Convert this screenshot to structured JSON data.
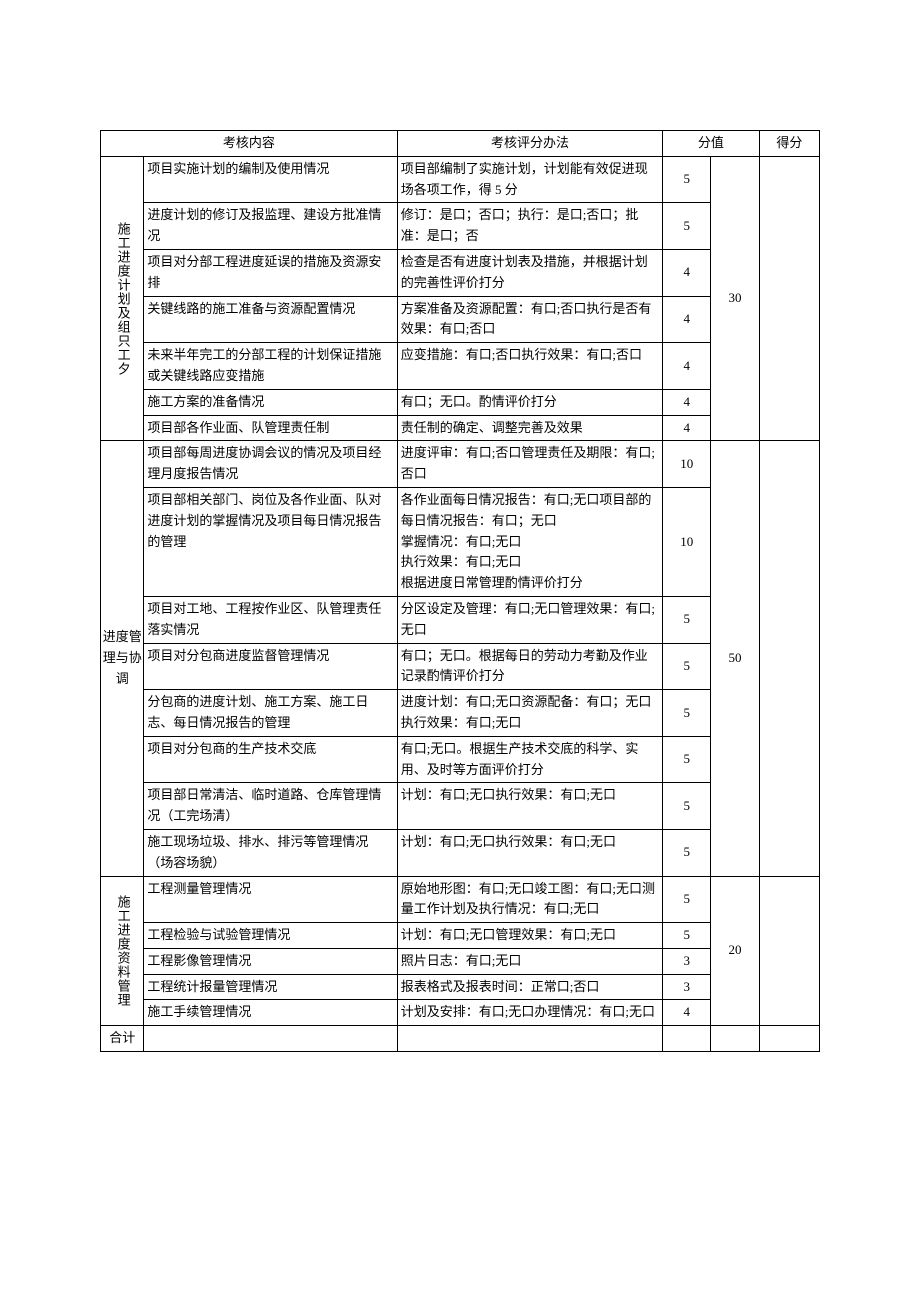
{
  "headers": {
    "content": "考核内容",
    "method": "考核评分办法",
    "score": "分值",
    "got": "得分"
  },
  "sections": [
    {
      "category": "施工进度计划及组只工夕",
      "group_score": "30",
      "rows": [
        {
          "item": "项目实施计划的编制及使用情况",
          "method": "项目部编制了实施计划，计划能有效促进现场各项工作，得 5 分",
          "score": "5"
        },
        {
          "item": "进度计划的修订及报监理、建设方批准情况",
          "method": "修订：是口；否口；执行：是口;否口；批准：是口；否",
          "score": "5"
        },
        {
          "item": "项目对分部工程进度延误的措施及资源安排",
          "method": "检查是否有进度计划表及措施，并根据计划的完善性评价打分",
          "score": "4"
        },
        {
          "item": "关键线路的施工准备与资源配置情况",
          "method": "方案准备及资源配置：有口;否口执行是否有效果：有口;否口",
          "score": "4"
        },
        {
          "item": "未来半年完工的分部工程的计划保证措施或关键线路应变措施",
          "method": "应变措施：有口;否口执行效果：有口;否口",
          "score": "4"
        },
        {
          "item": "施工方案的准备情况",
          "method": "有口；无口。酌情评价打分",
          "score": "4"
        },
        {
          "item": "项目部各作业面、队管理责任制",
          "method": "责任制的确定、调整完善及效果",
          "score": "4"
        }
      ]
    },
    {
      "category": "进度管理与协调",
      "category_plain": true,
      "group_score": "50",
      "rows": [
        {
          "item": "项目部每周进度协调会议的情况及项目经理月度报告情况",
          "method": "进度评审：有口;否口管理责任及期限：有口;否口",
          "score": "10"
        },
        {
          "item": "项目部相关部门、岗位及各作业面、队对进度计划的掌握情况及项目每日情况报告的管理",
          "method": "各作业面每日情况报告：有口;无口项目部的每日情况报告：有口；无口\n掌握情况：有口;无口\n执行效果：有口;无口\n根据进度日常管理酌情评价打分",
          "score": "10"
        },
        {
          "item": "项目对工地、工程按作业区、队管理责任落实情况",
          "method": "分区设定及管理：有口;无口管理效果：有口;无口",
          "score": "5"
        },
        {
          "item": "项目对分包商进度监督管理情况",
          "method": "有口；无口。根据每日的劳动力考勤及作业记录酌情评价打分",
          "score": "5"
        },
        {
          "item": "分包商的进度计划、施工方案、施工日志、每日情况报告的管理",
          "method": "进度计划：有口;无口资源配备：有口；无口执行效果：有口;无口",
          "score": "5"
        },
        {
          "item": "项目对分包商的生产技术交底",
          "method": "有口;无口。根据生产技术交底的科学、实用、及时等方面评价打分",
          "score": "5"
        },
        {
          "item": "项目部日常清洁、临时道路、仓库管理情况（工完场清）",
          "method": "计划：有口;无口执行效果：有口;无口",
          "score": "5"
        },
        {
          "item": "施工现场垃圾、排水、排污等管理情况（场容场貌）",
          "method": "计划：有口;无口执行效果：有口;无口",
          "score": "5"
        }
      ]
    },
    {
      "category": "施工进度资料管理",
      "group_score": "20",
      "rows": [
        {
          "item": "工程测量管理情况",
          "method": "原始地形图：有口;无口竣工图：有口;无口测量工作计划及执行情况：有口;无口",
          "score": "5"
        },
        {
          "item": "工程检验与试验管理情况",
          "method": "计划：有口;无口管理效果：有口;无口",
          "score": "5"
        },
        {
          "item": "工程影像管理情况",
          "method": "照片日志：有口;无口",
          "score": "3"
        },
        {
          "item": "工程统计报量管理情况",
          "method": "报表格式及报表时间：正常口;否口",
          "score": "3"
        },
        {
          "item": "施工手续管理情况",
          "method": "计划及安排：有口;无口办理情况：有口;无口",
          "score": "4"
        }
      ]
    }
  ],
  "footer": {
    "total_label": "合计"
  }
}
